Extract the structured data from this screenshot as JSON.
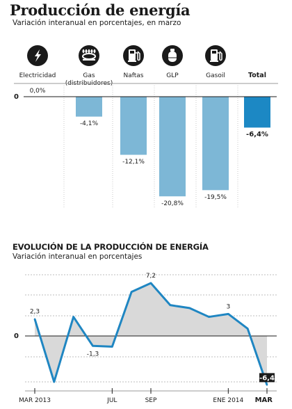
{
  "header": {
    "title": "Producción de energía",
    "subtitle": "Variación interanual en porcentajes, en marzo"
  },
  "section2": {
    "title": "EVOLUCIÓN DE LA PRODUCCIÓN DE ENERGÍA",
    "subtitle": "Variación interanual en porcentajes"
  },
  "colors": {
    "bar": "#7db7d6",
    "bar_total": "#1c88c4",
    "line": "#1f86c2",
    "area": "#d9d9d9",
    "icon_bg": "#1a1a1a"
  },
  "chart_data": [
    {
      "type": "bar",
      "categories": [
        "Electricidad",
        "Gas (distribuidores)",
        "Naftas",
        "GLP",
        "Gasoil",
        "Total"
      ],
      "category_lines": [
        [
          "Electricidad"
        ],
        [
          "Gas",
          "(distribuidores)"
        ],
        [
          "Naftas"
        ],
        [
          "GLP"
        ],
        [
          "Gasoil"
        ],
        [
          "Total"
        ]
      ],
      "icons": [
        "lightning-icon",
        "gas-burner-icon",
        "fuel-pump-icon",
        "gas-cylinder-icon",
        "fuel-pump-icon",
        ""
      ],
      "values": [
        0.0,
        -4.1,
        -12.1,
        -20.8,
        -19.5,
        -6.4
      ],
      "value_labels": [
        "0,0%",
        "-4,1%",
        "-12,1%",
        "-20,8%",
        "-19,5%",
        "-6,4%"
      ],
      "highlight": "Total",
      "zero_label": "0",
      "ylim": [
        -22,
        0
      ]
    },
    {
      "type": "line",
      "x_ticks": [
        "MAR 2013",
        "JUL",
        "SEP",
        "ENE 2014",
        "MAR"
      ],
      "x_tick_index": [
        0,
        4,
        6,
        10,
        12
      ],
      "values": [
        2.3,
        -6.0,
        2.6,
        -1.3,
        -1.4,
        6.0,
        7.2,
        4.2,
        3.8,
        2.6,
        3.0,
        1.0,
        -6.4
      ],
      "point_labels": [
        {
          "index": 0,
          "text": "2,3"
        },
        {
          "index": 3,
          "text": "-1,3"
        },
        {
          "index": 6,
          "text": "7,2"
        },
        {
          "index": 10,
          "text": "3"
        },
        {
          "index": 12,
          "text": "-6,4"
        }
      ],
      "zero_label": "0",
      "ylim": [
        -6,
        8
      ]
    }
  ]
}
